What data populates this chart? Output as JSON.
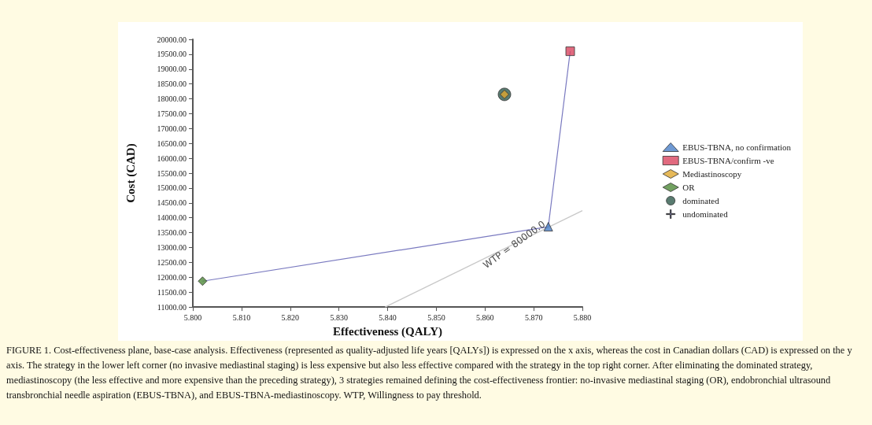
{
  "chart_data": {
    "type": "scatter",
    "xlabel": "Effectiveness (QALY)",
    "ylabel": "Cost (CAD)",
    "xlim": [
      5.8,
      5.88
    ],
    "ylim": [
      11000,
      20000
    ],
    "xticks": [
      {
        "value": 5.8,
        "label": "5.800"
      },
      {
        "value": 5.81,
        "label": "5.810"
      },
      {
        "value": 5.82,
        "label": "5.820"
      },
      {
        "value": 5.83,
        "label": "5.830"
      },
      {
        "value": 5.84,
        "label": "5.840"
      },
      {
        "value": 5.85,
        "label": "5.850"
      },
      {
        "value": 5.86,
        "label": "5.860"
      },
      {
        "value": 5.87,
        "label": "5.870"
      },
      {
        "value": 5.88,
        "label": "5.880"
      }
    ],
    "yticks": [
      {
        "value": 11000,
        "label": "11000.00"
      },
      {
        "value": 11500,
        "label": "11500.00"
      },
      {
        "value": 12000,
        "label": "12000.00"
      },
      {
        "value": 12500,
        "label": "12500.00"
      },
      {
        "value": 13000,
        "label": "13000.00"
      },
      {
        "value": 13500,
        "label": "13500.00"
      },
      {
        "value": 14000,
        "label": "14000.00"
      },
      {
        "value": 14500,
        "label": "14500.00"
      },
      {
        "value": 15000,
        "label": "15000.00"
      },
      {
        "value": 15500,
        "label": "15500.00"
      },
      {
        "value": 16000,
        "label": "16000.00"
      },
      {
        "value": 16500,
        "label": "16500.00"
      },
      {
        "value": 17000,
        "label": "17000.00"
      },
      {
        "value": 17500,
        "label": "17500.00"
      },
      {
        "value": 18000,
        "label": "18000.00"
      },
      {
        "value": 18500,
        "label": "18500.00"
      },
      {
        "value": 19000,
        "label": "19000.00"
      },
      {
        "value": 19500,
        "label": "19500.00"
      },
      {
        "value": 20000,
        "label": "20000.00"
      }
    ],
    "grid": false,
    "legend": "right",
    "series": [
      {
        "name": "EBUS-TBNA, no confirmation",
        "marker": "triangle",
        "color": "#4a7fc8",
        "x": [
          5.873
        ],
        "values": [
          13700
        ]
      },
      {
        "name": "EBUS-TBNA/confirm -ve",
        "marker": "square",
        "color": "#d9455f",
        "x": [
          5.8775
        ],
        "values": [
          19600
        ]
      },
      {
        "name": "Mediastinoscopy",
        "marker": "diamond",
        "color": "#e0a830",
        "x": [
          5.864
        ],
        "values": [
          18150
        ]
      },
      {
        "name": "OR",
        "marker": "diamond",
        "color": "#4f8a3a",
        "x": [
          5.802
        ],
        "values": [
          11870
        ]
      },
      {
        "name": "dominated",
        "marker": "circle",
        "color": "#2f5a4c",
        "x": [
          5.864
        ],
        "values": [
          18150
        ]
      },
      {
        "name": "undominated",
        "type": "line",
        "marker": "none",
        "color": "#7a7ac0",
        "x": [
          5.802,
          5.873,
          5.8775
        ],
        "values": [
          11870,
          13700,
          19600
        ]
      },
      {
        "type": "line",
        "marker": "none",
        "color": "#c8c8c8",
        "x": [
          5.8395,
          5.88
        ],
        "values": [
          11000,
          14240
        ]
      }
    ],
    "annotations": [
      {
        "text": "WTP = 80000.0",
        "x": 5.866,
        "y": 13100
      },
      "FIGURE 1. Cost-effectiveness plane, base-case analysis. Effectiveness (represented as quality-adjusted life years [QALYs]) is expressed on the x axis, whereas the cost in Canadian dollars (CAD) is expressed on the y axis. The strategy in the lower left corner (no invasive mediastinal staging) is less expensive but also less effective compared with the strategy in the top right corner. After eliminating the dominated strategy, mediastinoscopy (the less effective and more expensive than the preceding strategy), 3 strategies remained defining the cost-effectiveness frontier: no-invasive mediastinal staging (OR), endobronchial ultrasound transbronchial needle aspiration (EBUS-TBNA), and EBUS-TBNA-mediastinoscopy. WTP, Willingness to pay threshold."
    ]
  }
}
